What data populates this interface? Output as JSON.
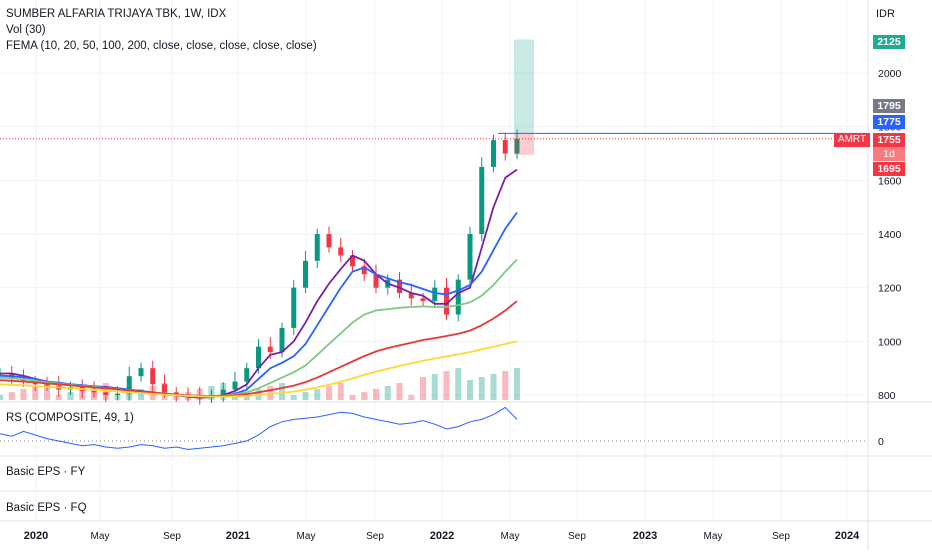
{
  "header": {
    "symbol_line": "SUMBER ALFARIA TRIJAYA TBK, 1W, IDX",
    "vol_line": "Vol (30)",
    "fema_line": "FEMA (10, 20, 50, 100, 200, close, close, close, close, close)"
  },
  "panes": {
    "rs_label": "RS (COMPOSITE, 49, 1)",
    "rs_zero": "0",
    "eps_fy_label": "Basic EPS · FY",
    "eps_fq_label": "Basic EPS · FQ"
  },
  "price_axis": {
    "currency": "IDR",
    "ticks": [
      "2000",
      "1800",
      "1600",
      "1400",
      "1200",
      "1000",
      "800"
    ],
    "tags": {
      "target": "2125",
      "high": "1795",
      "ma": "1775",
      "last": "1755",
      "countdown": "1d 19h",
      "low": "1695",
      "ticker": "AMRT"
    },
    "colors": {
      "target": "#22ab94",
      "high": "#787b86",
      "ma": "#2962ff",
      "last": "#f23645",
      "countdown": "#f77c80",
      "low": "#f23645"
    }
  },
  "time_axis": {
    "labels": [
      "2020",
      "May",
      "Sep",
      "2021",
      "May",
      "Sep",
      "2022",
      "May",
      "Sep",
      "2023",
      "May",
      "Sep",
      "2024"
    ]
  },
  "chart_data": {
    "type": "candlestick",
    "ylim": [
      780,
      2180
    ],
    "timeframe": "1W",
    "series": [
      {
        "name": "FEMA 10",
        "color": "#7b1fa2",
        "values": [
          880,
          880,
          872,
          860,
          850,
          845,
          840,
          836,
          832,
          830,
          825,
          820,
          815,
          808,
          802,
          798,
          794,
          790,
          792,
          800,
          815,
          840,
          900,
          950,
          960,
          1000,
          1070,
          1150,
          1215,
          1270,
          1320,
          1300,
          1250,
          1215,
          1200,
          1180,
          1170,
          1140,
          1140,
          1180,
          1200,
          1350,
          1500,
          1610,
          1640
        ]
      },
      {
        "name": "FEMA 20",
        "color": "#2962ff",
        "values": [
          872,
          870,
          866,
          860,
          850,
          846,
          840,
          836,
          832,
          828,
          825,
          820,
          815,
          810,
          805,
          800,
          796,
          792,
          792,
          797,
          805,
          820,
          860,
          900,
          920,
          945,
          990,
          1060,
          1130,
          1200,
          1260,
          1275,
          1250,
          1235,
          1220,
          1210,
          1195,
          1180,
          1175,
          1190,
          1210,
          1260,
          1340,
          1420,
          1480
        ]
      },
      {
        "name": "FEMA 50",
        "color": "#81c784",
        "values": [
          865,
          862,
          858,
          852,
          847,
          843,
          838,
          834,
          830,
          826,
          822,
          818,
          812,
          808,
          804,
          800,
          797,
          795,
          795,
          798,
          802,
          810,
          825,
          845,
          865,
          885,
          910,
          950,
          990,
          1030,
          1070,
          1100,
          1115,
          1120,
          1125,
          1128,
          1130,
          1128,
          1128,
          1135,
          1145,
          1170,
          1210,
          1260,
          1305
        ]
      },
      {
        "name": "FEMA 100",
        "color": "#e53935",
        "values": [
          855,
          853,
          850,
          847,
          843,
          840,
          836,
          832,
          828,
          825,
          821,
          817,
          813,
          809,
          805,
          802,
          799,
          797,
          796,
          797,
          799,
          803,
          810,
          818,
          826,
          835,
          848,
          865,
          885,
          905,
          925,
          945,
          962,
          975,
          985,
          995,
          1005,
          1012,
          1020,
          1028,
          1040,
          1060,
          1085,
          1115,
          1150
        ]
      },
      {
        "name": "FEMA 200",
        "color": "#fdd835",
        "values": [
          840,
          838,
          836,
          833,
          830,
          828,
          825,
          822,
          819,
          816,
          813,
          810,
          807,
          804,
          801,
          799,
          797,
          795,
          794,
          794,
          795,
          797,
          800,
          804,
          808,
          813,
          820,
          828,
          838,
          850,
          862,
          875,
          887,
          898,
          908,
          918,
          928,
          936,
          944,
          952,
          960,
          970,
          980,
          990,
          1000
        ]
      }
    ],
    "last_price": 1755,
    "position_target": 2125,
    "position_stop": 1695,
    "position_entry": 1775,
    "rs_zero_level": 0
  }
}
